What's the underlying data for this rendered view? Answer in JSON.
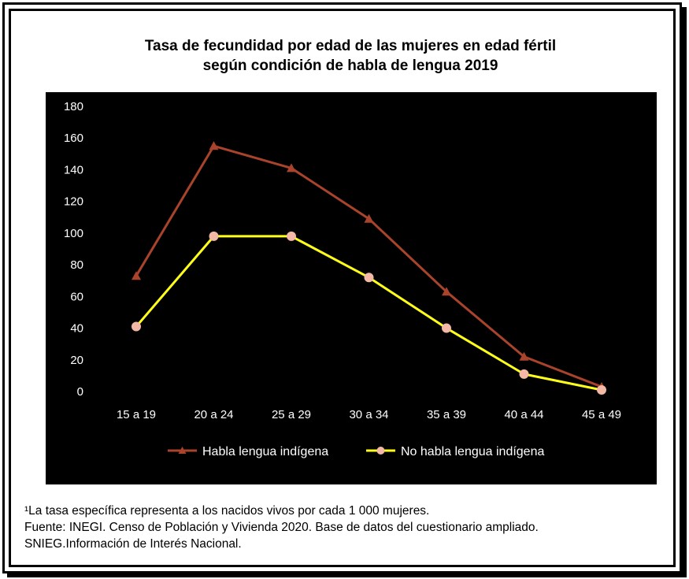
{
  "title": {
    "line1": "Tasa de fecundidad por edad de las mujeres en edad fértil",
    "line2": "según condición de habla de lengua 2019"
  },
  "colors": {
    "background": "#000000",
    "series_indigena": "#A9432C",
    "series_no_indigena": "#FFFF1A",
    "marker_no_indigena": "#F4B9A6",
    "axis_text": "#FFFFFF"
  },
  "chart_data": {
    "type": "line",
    "title": "Tasa de fecundidad por edad de las mujeres en edad fértil según condición de habla de lengua 2019",
    "categories": [
      "15 a 19",
      "20 a 24",
      "25 a 29",
      "30 a 34",
      "35 a 39",
      "40 a 44",
      "45 a 49"
    ],
    "yticks": [
      "0",
      "20",
      "40",
      "60",
      "80",
      "100",
      "120",
      "140",
      "160",
      "180"
    ],
    "ylim": [
      0,
      180
    ],
    "grid": false,
    "legend_position": "bottom",
    "series": [
      {
        "name": "Habla lengua indígena",
        "marker": "triangle",
        "values": [
          73,
          155,
          141,
          109,
          63,
          22,
          3
        ]
      },
      {
        "name": "No habla lengua indígena",
        "marker": "circle",
        "values": [
          41,
          98,
          98,
          72,
          40,
          11,
          1
        ]
      }
    ]
  },
  "footnote": {
    "line1": "¹La tasa específica representa a los nacidos vivos por cada 1 000 mujeres.",
    "line2": "Fuente: INEGI. Censo de Población y Vivienda 2020. Base de datos del cuestionario ampliado.",
    "line3": "SNIEG.Información de Interés Nacional."
  }
}
